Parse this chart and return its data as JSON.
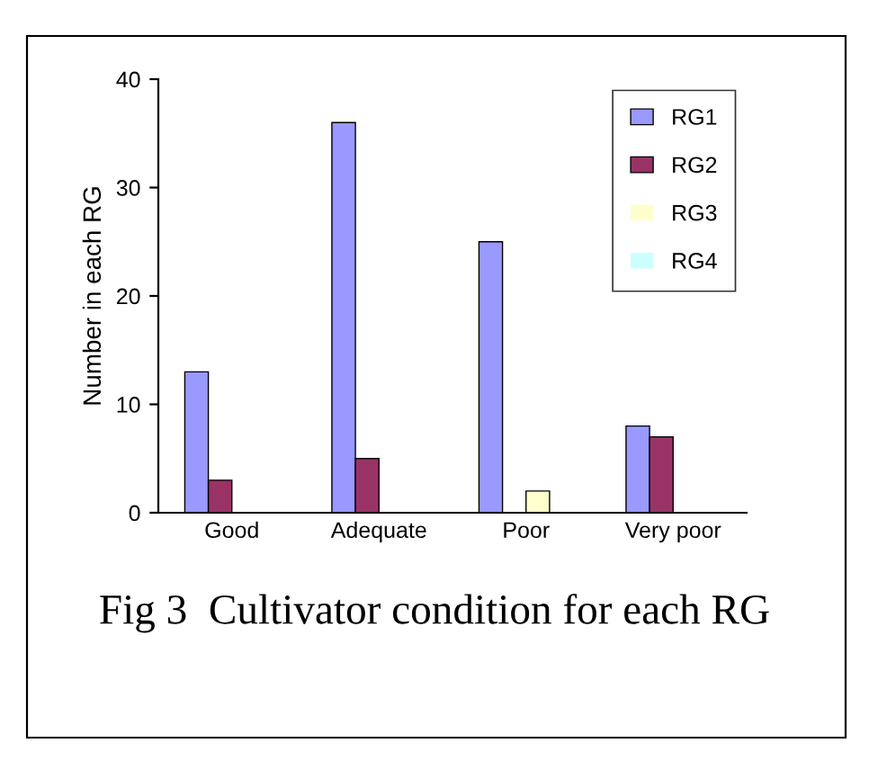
{
  "chart_data": {
    "type": "bar",
    "title": "Fig 3  Cultivator condition for each RG",
    "ylabel": "Number in each RG",
    "categories": [
      "Good",
      "Adequate",
      "Poor",
      "Very poor"
    ],
    "series": [
      {
        "name": "RG1",
        "color": "#9999ff",
        "values": [
          13,
          36,
          25,
          8
        ]
      },
      {
        "name": "RG2",
        "color": "#993366",
        "values": [
          3,
          5,
          0,
          7
        ]
      },
      {
        "name": "RG3",
        "color": "#ffffcc",
        "values": [
          0,
          0,
          2,
          0
        ]
      },
      {
        "name": "RG4",
        "color": "#ccffff",
        "values": [
          0,
          0,
          0,
          0
        ]
      }
    ],
    "ylim": [
      0,
      40
    ],
    "yticks": [
      0,
      10,
      20,
      30,
      40
    ],
    "grid": false,
    "legend": "top right"
  }
}
